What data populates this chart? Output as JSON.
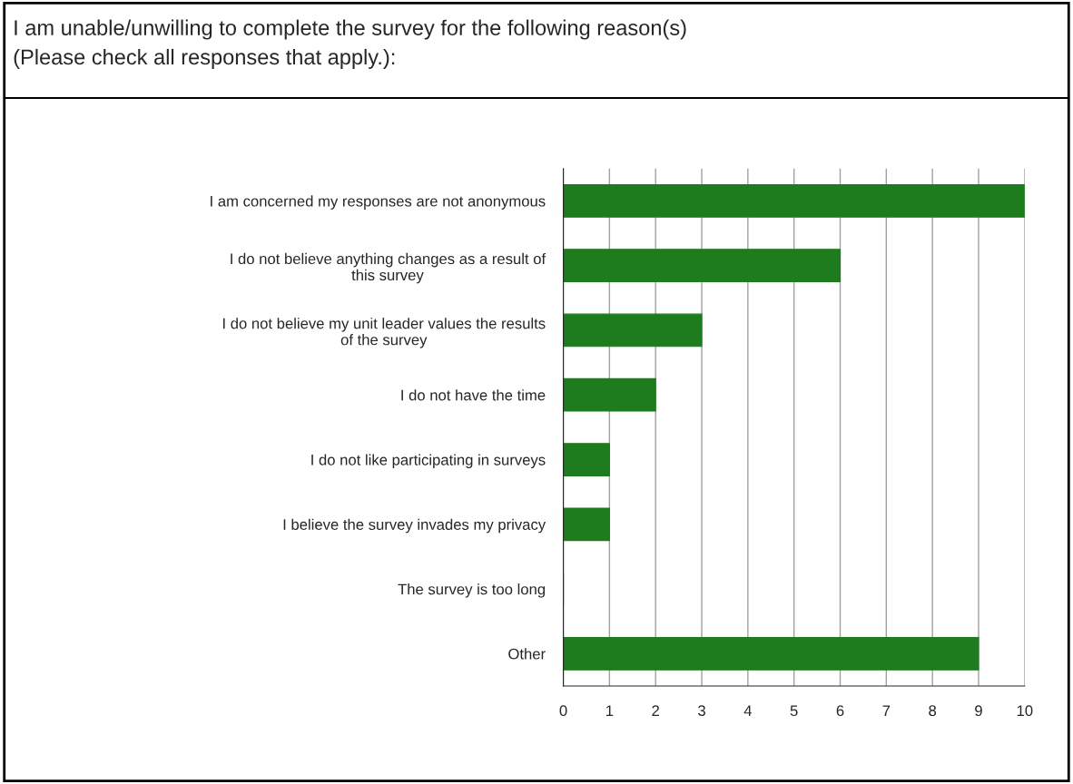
{
  "chart_data": {
    "type": "bar",
    "orientation": "horizontal",
    "title": "I am unable/unwilling to complete the survey for the following reason(s)\n(Please check all responses that apply.):",
    "categories": [
      "I am concerned my responses are not anonymous",
      "I do not believe anything changes as a result of\nthis survey",
      "I do not believe my unit leader values the results\nof the survey",
      "I do not have the time",
      "I do not like participating in surveys",
      "I believe the survey invades my privacy",
      "The survey is too long",
      "Other"
    ],
    "values": [
      10,
      6,
      3,
      2,
      1,
      1,
      0,
      9
    ],
    "color": "#1e7b1e",
    "xlim": [
      0,
      10
    ],
    "xticks": [
      0,
      1,
      2,
      3,
      4,
      5,
      6,
      7,
      8,
      9,
      10
    ],
    "grid": "x"
  }
}
